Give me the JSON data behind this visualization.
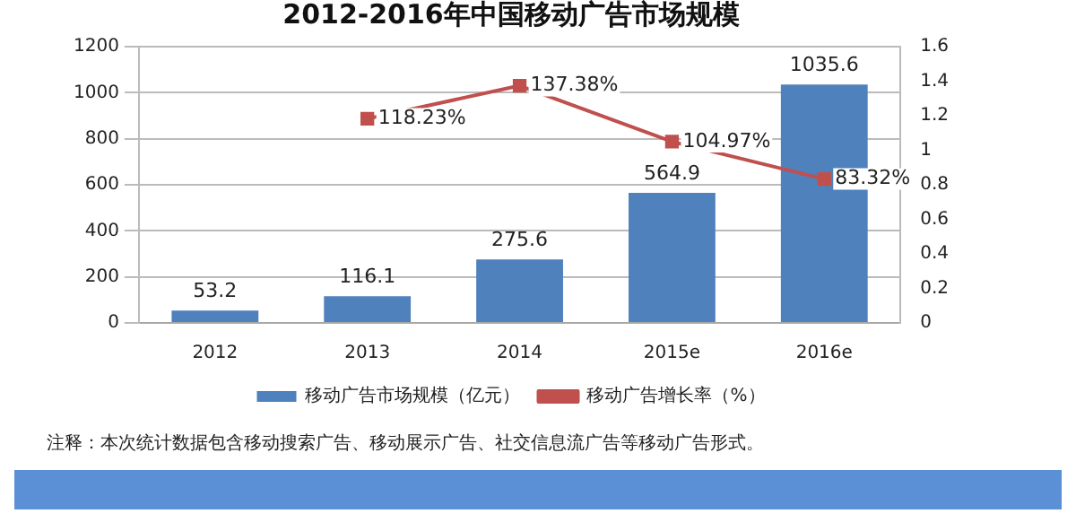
{
  "chart_data": {
    "type": "bar",
    "title": "2012-2016年中国移动广告市场规模",
    "categories": [
      "2012",
      "2013",
      "2014",
      "2015e",
      "2016e"
    ],
    "series": [
      {
        "name": "移动广告市场规模（亿元）",
        "color": "#4f81bd",
        "values": [
          53.2,
          116.1,
          275.6,
          564.9,
          1035.6
        ]
      },
      {
        "name": "移动广告增长率（%）",
        "type": "line",
        "axis": "y2",
        "color": "#c0504d",
        "marker": "square",
        "values": [
          null,
          1.1823,
          1.3738,
          1.0497,
          0.8332
        ],
        "value_labels": [
          null,
          "118.23%",
          "137.38%",
          "104.97%",
          "83.32%"
        ]
      }
    ],
    "data_labels": true,
    "ylim": [
      0,
      1200
    ],
    "yticks": [
      0,
      200,
      400,
      600,
      800,
      1000,
      1200
    ],
    "y2lim": [
      0,
      1.6
    ],
    "y2ticks": [
      0,
      0.2,
      0.4,
      0.6,
      0.8,
      1,
      1.2,
      1.4,
      1.6
    ],
    "grid": "y",
    "legend": "bottom",
    "annotations": [
      "注释：本次统计数据包含移动搜索广告、移动展示广告、社交信息流广告等移动广告形式。"
    ]
  }
}
